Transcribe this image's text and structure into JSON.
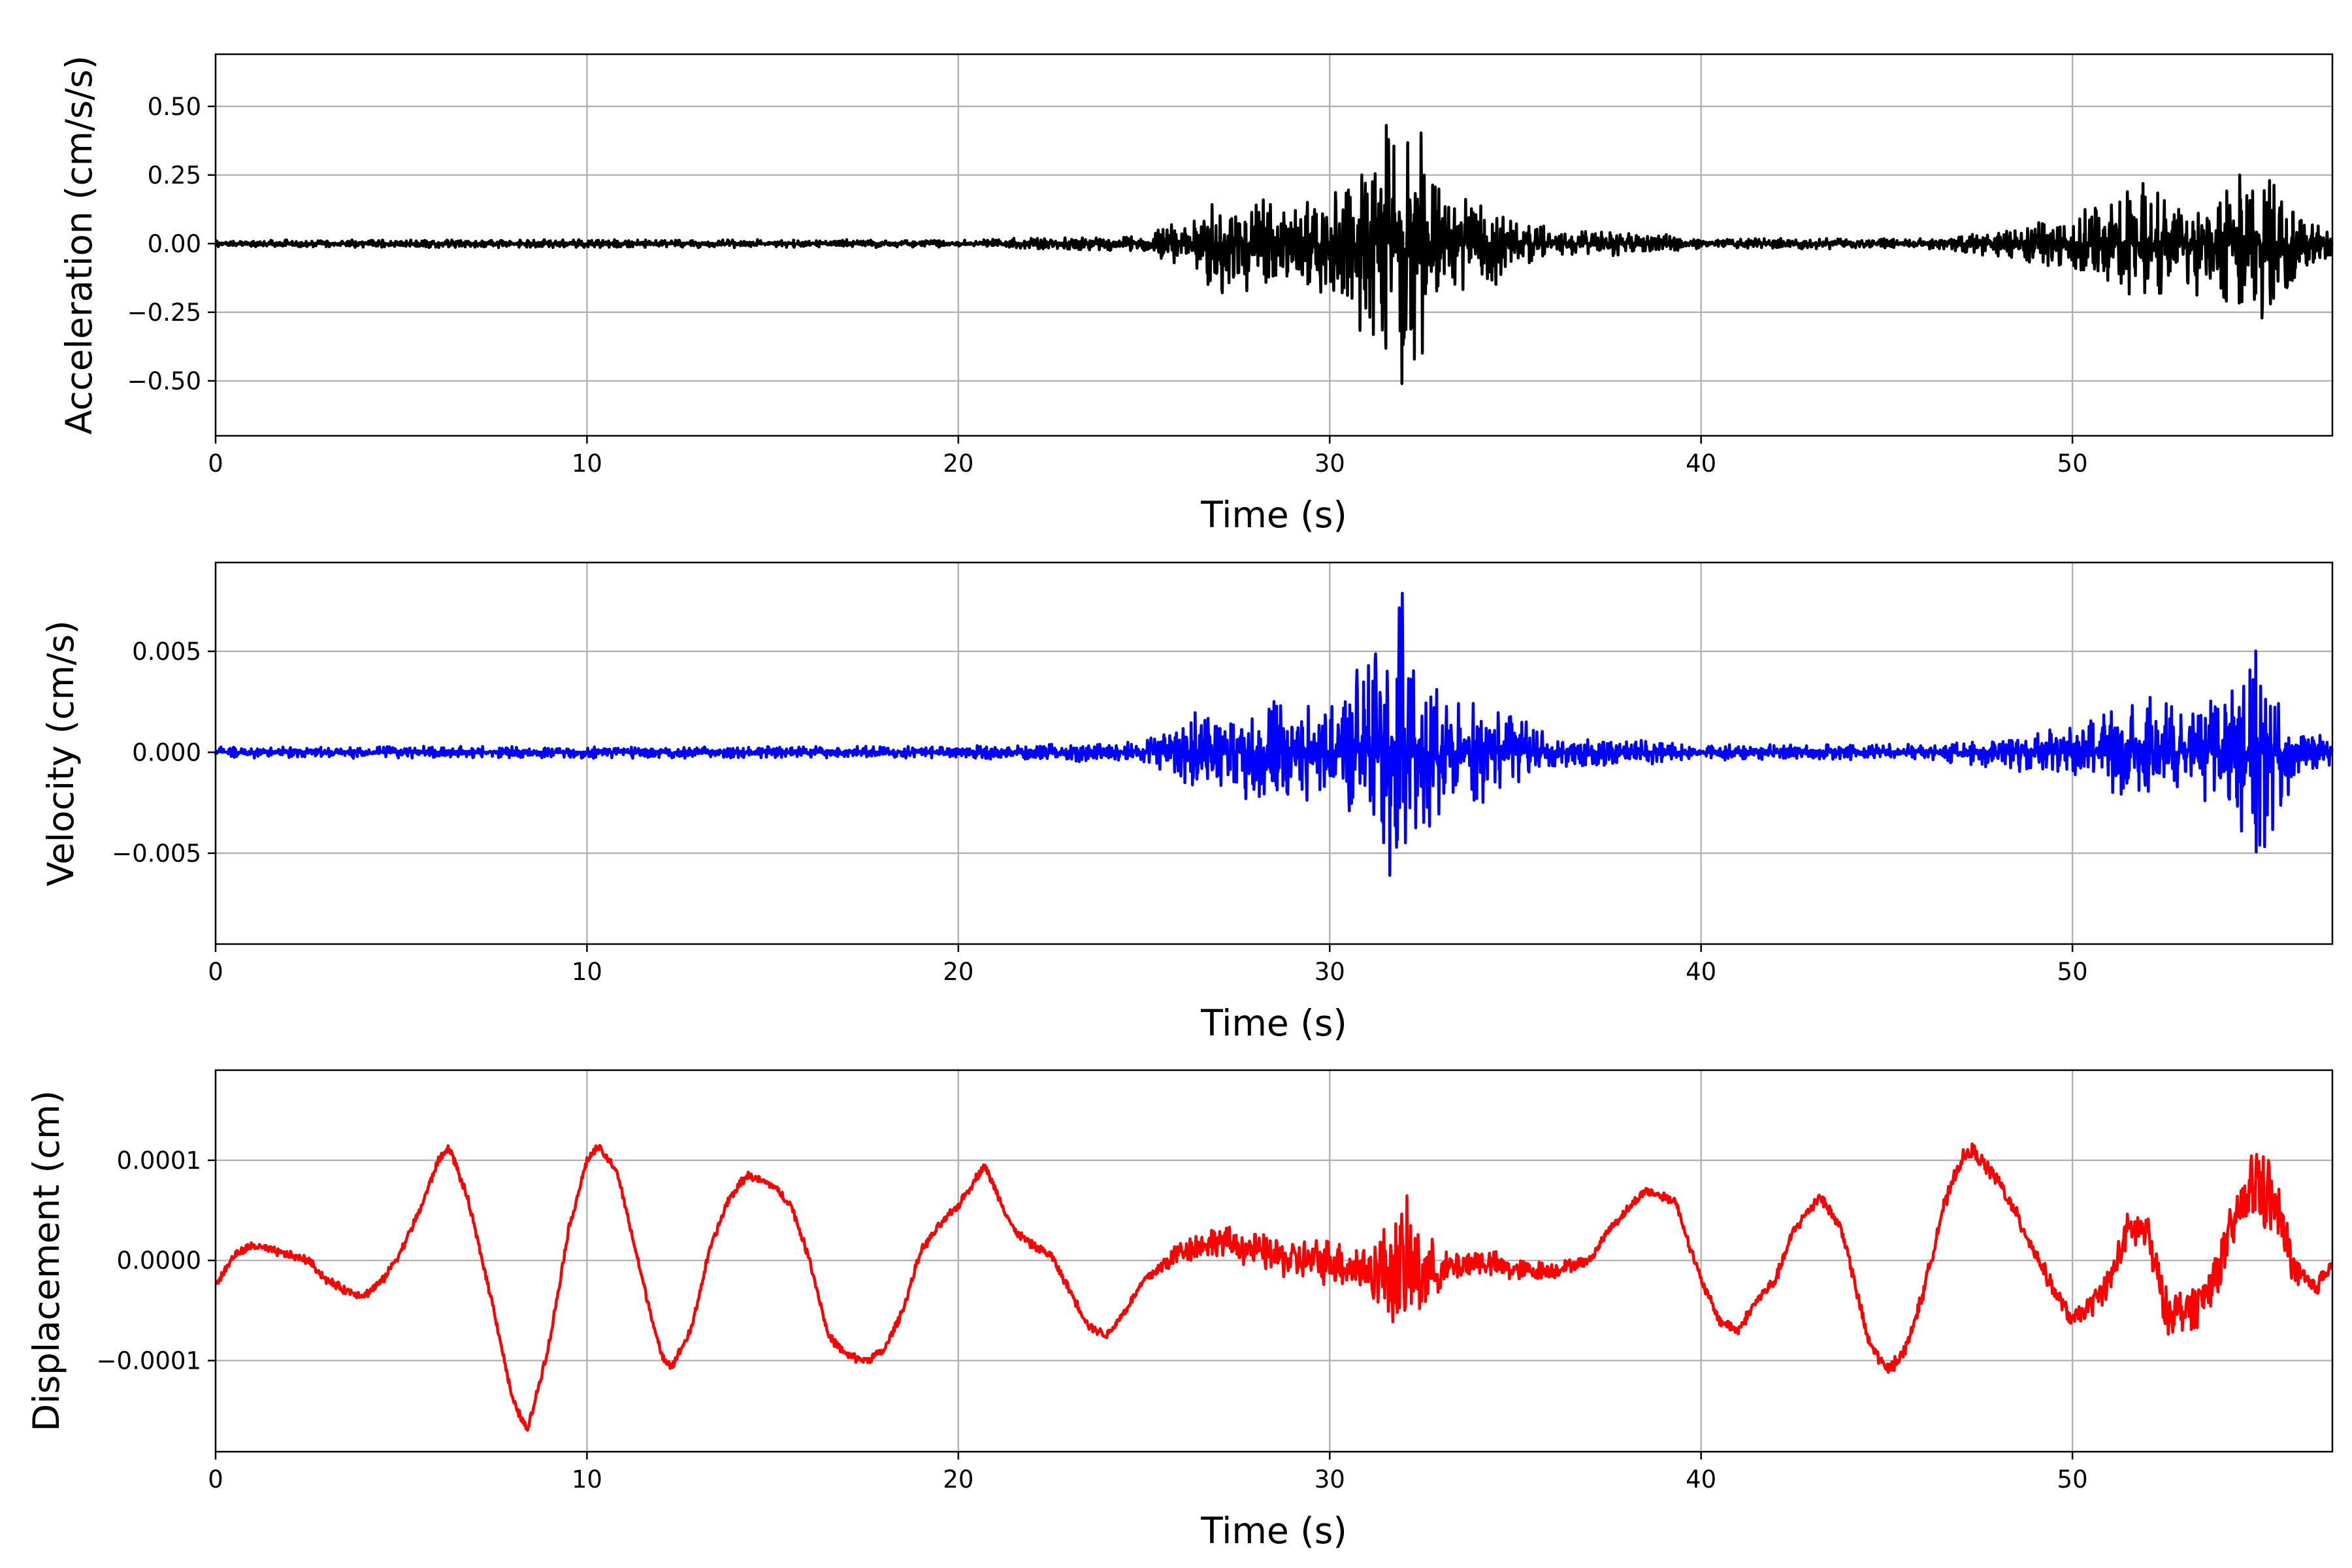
{
  "chart_data": [
    {
      "type": "line",
      "ylabel": "Acceleration (cm/s/s)",
      "xlabel": "Time (s)",
      "xlim": [
        0,
        57
      ],
      "ylim": [
        -0.7,
        0.69
      ],
      "xticks": [
        0,
        10,
        20,
        30,
        40,
        50
      ],
      "xtick_labels": [
        "0",
        "10",
        "20",
        "30",
        "40",
        "50"
      ],
      "yticks": [
        -0.5,
        -0.25,
        0,
        0.25,
        0.5
      ],
      "ytick_labels": [
        "−0.50",
        "−0.25",
        "0.00",
        "0.25",
        "0.50"
      ],
      "grid": true,
      "color": "#000000",
      "series": [
        {
          "name": "acceleration",
          "envelope_t": [
            0,
            20,
            25,
            26,
            27,
            29,
            30,
            31,
            32,
            33,
            34.5,
            36,
            38,
            40,
            46,
            48,
            50,
            52,
            53,
            55,
            56,
            57
          ],
          "envelope_peak": [
            0.015,
            0.015,
            0.03,
            0.1,
            0.2,
            0.15,
            0.2,
            0.35,
            0.62,
            0.2,
            0.15,
            0.05,
            0.05,
            0.02,
            0.02,
            0.05,
            0.1,
            0.25,
            0.15,
            0.38,
            0.15,
            0.05
          ]
        }
      ]
    },
    {
      "type": "line",
      "ylabel": "Velocity (cm/s)",
      "xlabel": "Time (s)",
      "xlim": [
        0,
        57
      ],
      "ylim": [
        -0.0095,
        0.0094
      ],
      "xticks": [
        0,
        10,
        20,
        30,
        40,
        50
      ],
      "xtick_labels": [
        "0",
        "10",
        "20",
        "30",
        "40",
        "50"
      ],
      "yticks": [
        -0.005,
        0,
        0.005
      ],
      "ytick_labels": [
        "−0.005",
        "0.000",
        "0.005"
      ],
      "grid": true,
      "color": "#0000ff",
      "series": [
        {
          "name": "velocity",
          "envelope_t": [
            0,
            20,
            25,
            26,
            27,
            29,
            30,
            31,
            32,
            33,
            34.5,
            36,
            38,
            40,
            46,
            48,
            50,
            52,
            53,
            55,
            56,
            57
          ],
          "envelope_peak": [
            0.0003,
            0.0003,
            0.0006,
            0.0015,
            0.0028,
            0.0025,
            0.0028,
            0.005,
            0.0085,
            0.003,
            0.0025,
            0.0008,
            0.0007,
            0.0004,
            0.0004,
            0.0008,
            0.0015,
            0.003,
            0.002,
            0.0058,
            0.0015,
            0.0008
          ]
        }
      ]
    },
    {
      "type": "line",
      "ylabel": "Displacement (cm)",
      "xlabel": "Time (s)",
      "xlim": [
        0,
        57
      ],
      "ylim": [
        -0.000191,
        0.00019
      ],
      "xticks": [
        0,
        10,
        20,
        30,
        40,
        50
      ],
      "xtick_labels": [
        "0",
        "10",
        "20",
        "30",
        "40",
        "50"
      ],
      "yticks": [
        -0.0001,
        0,
        0.0001
      ],
      "ytick_labels": [
        "−0.0001",
        "0.0000",
        "0.0001"
      ],
      "grid": true,
      "color": "#ff0000",
      "value_scale": 0.0001,
      "series": [
        {
          "name": "displacement",
          "t": [
            0,
            0.5,
            1,
            1.5,
            2,
            2.5,
            3,
            3.5,
            4,
            4.5,
            5,
            5.5,
            6,
            6.3,
            6.8,
            7.5,
            8,
            8.4,
            9,
            9.5,
            10,
            10.3,
            10.8,
            11.5,
            12,
            12.3,
            12.8,
            13.3,
            13.8,
            14.3,
            15,
            15.5,
            16,
            16.5,
            17,
            17.5,
            18,
            18.5,
            19,
            19.5,
            20,
            20.7,
            21.5,
            22,
            22.5,
            23,
            23.5,
            24,
            24.5,
            25,
            26,
            27,
            28,
            29,
            30,
            31,
            32,
            33,
            34,
            35,
            36,
            37,
            37.5,
            38.5,
            39.3,
            40,
            40.5,
            41,
            41.5,
            42,
            42.5,
            43.2,
            43.8,
            44.5,
            45,
            45.5,
            46,
            46.5,
            47,
            47.3,
            48,
            48.7,
            49.5,
            50,
            50.5,
            51,
            51.5,
            52,
            52.5,
            53,
            53.5,
            54,
            54.5,
            55,
            55.5,
            56,
            56.5,
            57
          ],
          "y": [
            -0.25,
            0.05,
            0.15,
            0.1,
            0.05,
            0,
            -0.2,
            -0.3,
            -0.35,
            -0.2,
            0.1,
            0.5,
            1.0,
            1.13,
            0.6,
            -0.5,
            -1.4,
            -1.7,
            -0.8,
            0.3,
            1.0,
            1.13,
            0.9,
            -0.2,
            -0.95,
            -1.05,
            -0.7,
            0.1,
            0.6,
            0.85,
            0.75,
            0.55,
            0.0,
            -0.75,
            -0.95,
            -1.0,
            -0.9,
            -0.5,
            0.1,
            0.35,
            0.55,
            0.95,
            0.3,
            0.15,
            0.05,
            -0.3,
            -0.65,
            -0.75,
            -0.5,
            -0.2,
            0.1,
            0.2,
            0.1,
            0.0,
            0.0,
            -0.1,
            -0.1,
            -0.1,
            0.0,
            -0.1,
            -0.1,
            0.0,
            0.3,
            0.7,
            0.6,
            -0.2,
            -0.6,
            -0.7,
            -0.4,
            -0.2,
            0.3,
            0.65,
            0.3,
            -0.8,
            -1.1,
            -0.9,
            -0.3,
            0.5,
            1.0,
            1.1,
            0.8,
            0.3,
            -0.3,
            -0.6,
            -0.45,
            -0.2,
            0.3,
            0.3,
            -0.5,
            -0.5,
            -0.4,
            0.0,
            0.5,
            0.8,
            0.5,
            -0.1,
            -0.3,
            0.0
          ],
          "noise_t": [
            0,
            25,
            26,
            28,
            31,
            32,
            33,
            36,
            37,
            50,
            52,
            54.5,
            55,
            56,
            57
          ],
          "noise_peak": [
            0.05,
            0.05,
            0.15,
            0.2,
            0.3,
            0.8,
            0.2,
            0.1,
            0.05,
            0.1,
            0.25,
            0.3,
            0.55,
            0.2,
            0.1
          ]
        }
      ]
    }
  ]
}
